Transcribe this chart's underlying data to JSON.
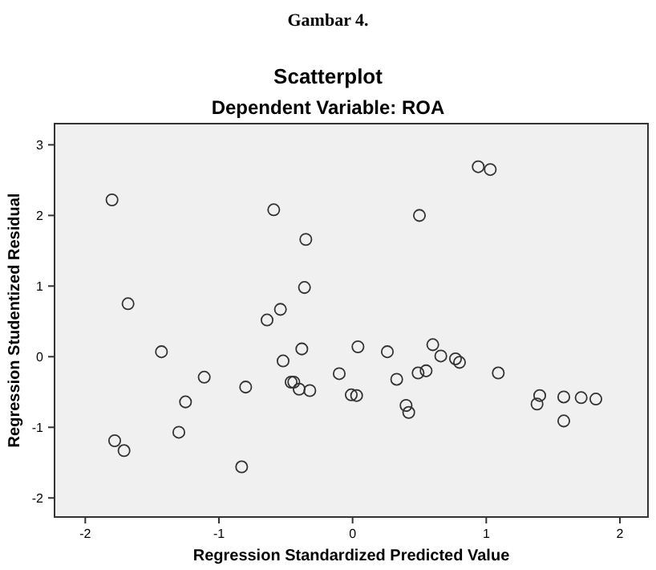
{
  "chart_data": {
    "type": "scatter",
    "title": "Scatterplot",
    "subtitle": "Dependent Variable: ROA",
    "xlabel": "Regression Standardized Predicted Value",
    "ylabel": "Regression Studentized Residual",
    "annotations": [
      "Gambar 4."
    ],
    "xlim": [
      -2.23,
      2.21
    ],
    "xticks": [
      -2,
      -1,
      0,
      1,
      2
    ],
    "ylim": [
      -2.27,
      3.3
    ],
    "yticks": [
      -2,
      -1,
      0,
      1,
      2,
      3
    ],
    "grid": false,
    "marker": "circle",
    "series": [
      {
        "color": "#333333",
        "x": [
          -1.8,
          -0.59,
          -0.35,
          -1.68,
          -0.36,
          -0.54,
          -0.64,
          -1.43,
          -0.38,
          -0.52,
          -1.11,
          -0.1,
          -0.8,
          -0.46,
          -0.44,
          -0.4,
          -0.32,
          -1.25,
          -1.3,
          -1.78,
          -1.71,
          -0.83,
          0.94,
          1.03,
          0.5,
          0.04,
          0.26,
          0.6,
          0.66,
          0.77,
          0.8,
          1.09,
          0.49,
          0.55,
          0.33,
          -0.01,
          0.03,
          0.4,
          0.42,
          1.4,
          1.38,
          1.58,
          1.71,
          1.82,
          1.58
        ],
        "values": [
          2.22,
          2.08,
          1.66,
          0.75,
          0.98,
          0.67,
          0.52,
          0.07,
          0.11,
          -0.06,
          -0.29,
          -0.24,
          -0.43,
          -0.36,
          -0.36,
          -0.46,
          -0.48,
          -0.64,
          -1.07,
          -1.19,
          -1.33,
          -1.56,
          2.69,
          2.65,
          2.0,
          0.14,
          0.07,
          0.17,
          0.01,
          -0.03,
          -0.08,
          -0.23,
          -0.23,
          -0.2,
          -0.32,
          -0.54,
          -0.55,
          -0.69,
          -0.79,
          -0.55,
          -0.67,
          -0.57,
          -0.58,
          -0.6,
          -0.91
        ]
      }
    ]
  }
}
